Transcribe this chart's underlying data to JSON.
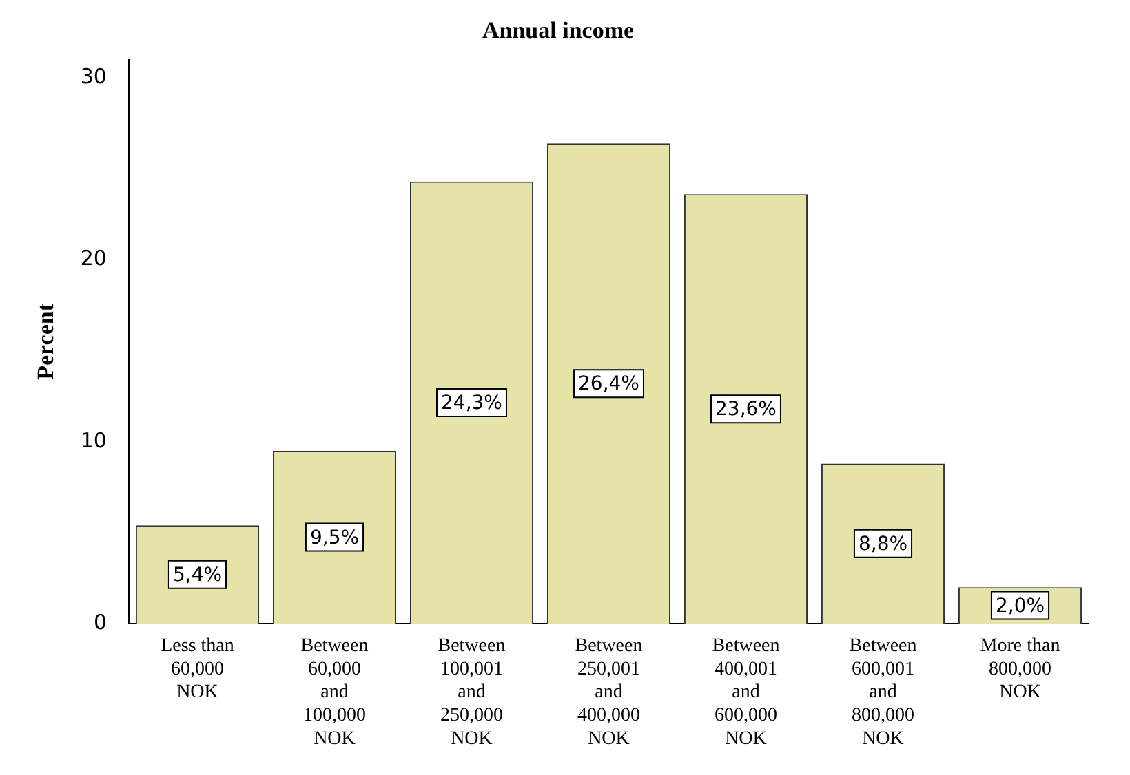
{
  "chart_data": {
    "type": "bar",
    "title": "Annual income",
    "ylabel": "Percent",
    "categories": [
      "Less than 60,000 NOK",
      "Between 60,000 and 100,000 NOK",
      "Between 100,001 and 250,000 NOK",
      "Between 250,001 and 400,000 NOK",
      "Between 400,001 and 600,000 NOK",
      "Between 600,001 and 800,000 NOK",
      "More than 800,000 NOK"
    ],
    "values": [
      5.4,
      9.5,
      24.3,
      26.4,
      23.6,
      8.8,
      2.0
    ],
    "value_labels": [
      "5,4%",
      "9,5%",
      "24,3%",
      "26,4%",
      "23,6%",
      "8,8%",
      "2,0%"
    ],
    "color": "#e6e3a8",
    "ylim": [
      0,
      31
    ],
    "yticks": [
      0,
      10,
      20,
      30
    ],
    "grid": false,
    "legend": false
  }
}
